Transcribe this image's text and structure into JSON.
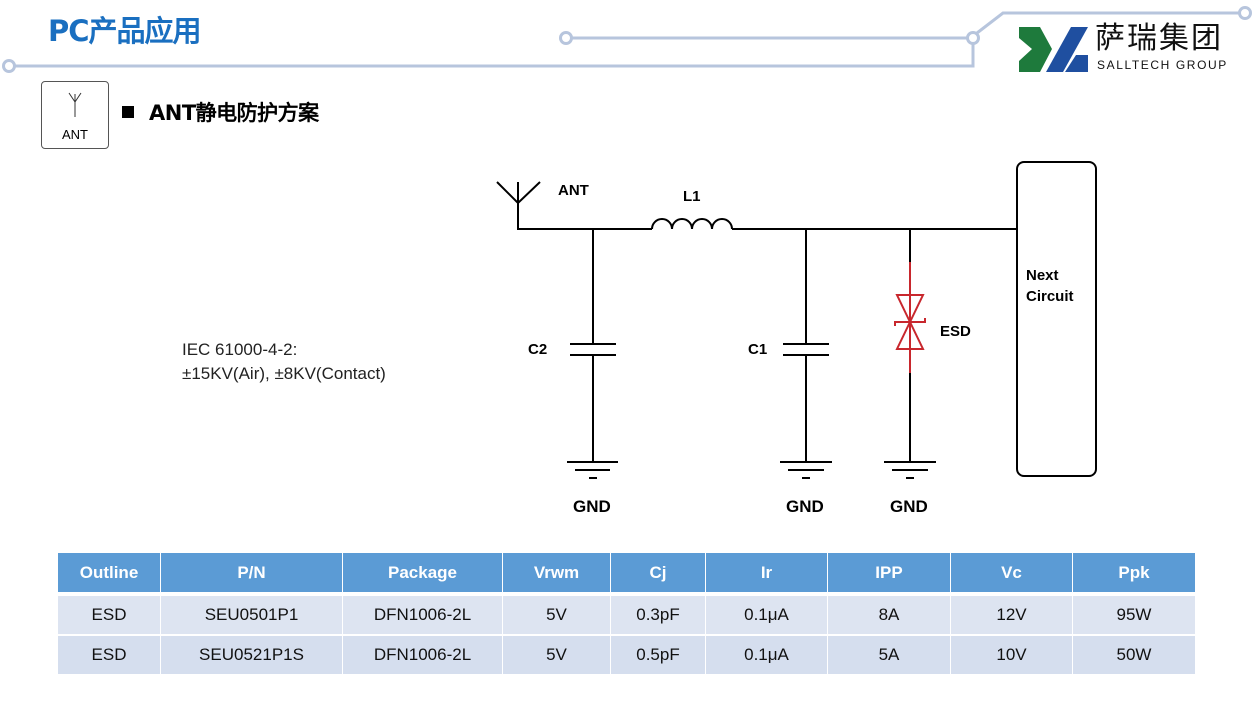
{
  "header": {
    "title": "PC产品应用",
    "section_title": "ANT静电防护方案",
    "icon_label": "ANT"
  },
  "logo": {
    "name_cn": "萨瑞集团",
    "name_en": "SALLTECH GROUP",
    "colors": {
      "green": "#1e7a3c",
      "blue": "#1f4fa0"
    }
  },
  "standard": {
    "line1": "IEC 61000-4-2:",
    "line2": "±15KV(Air), ±8KV(Contact)"
  },
  "circuit": {
    "labels": {
      "ant": "ANT",
      "l1": "L1",
      "c2": "C2",
      "c1": "C1",
      "esd": "ESD",
      "next1": "Next",
      "next2": "Circuit",
      "gnd": "GND"
    },
    "esd_color": "#c8272d"
  },
  "table": {
    "headers": [
      "Outline",
      "P/N",
      "Package",
      "Vrwm",
      "Cj",
      "Ir",
      "IPP",
      "Vc",
      "Ppk"
    ],
    "rows": [
      [
        "ESD",
        "SEU0501P1",
        "DFN1006-2L",
        "5V",
        "0.3pF",
        "0.1μA",
        "8A",
        "12V",
        "95W"
      ],
      [
        "ESD",
        "SEU0521P1S",
        "DFN1006-2L",
        "5V",
        "0.5pF",
        "0.1μA",
        "5A",
        "10V",
        "50W"
      ]
    ]
  },
  "colors": {
    "accent": "#1a6fc0",
    "table_header": "#5b9bd5",
    "deco_line": "#b7c5dd"
  }
}
